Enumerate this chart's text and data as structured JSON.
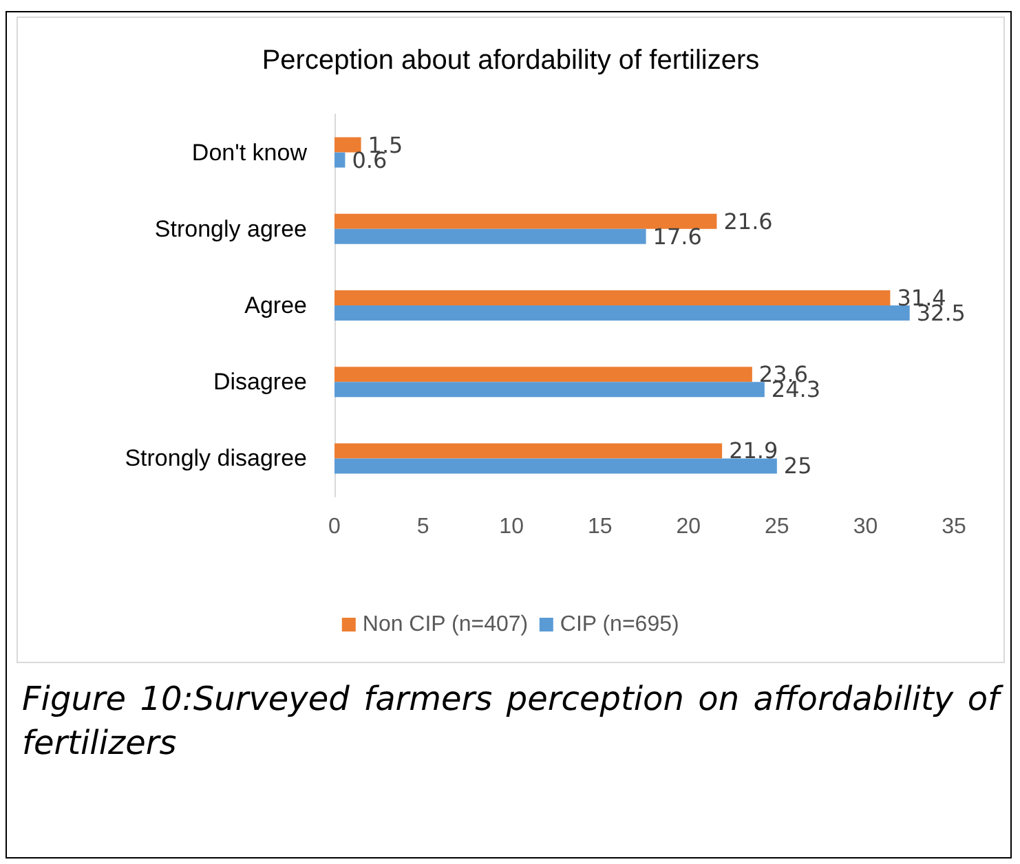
{
  "chart_data": {
    "type": "bar",
    "orientation": "horizontal",
    "title": "Perception about afordability of fertilizers",
    "categories": [
      "Don't know",
      "Strongly agree",
      "Agree",
      "Disagree",
      "Strongly disagree"
    ],
    "series": [
      {
        "name": "Non CIP (n=407)",
        "color": "#ed7d31",
        "values": [
          1.5,
          21.6,
          31.4,
          23.6,
          21.9
        ]
      },
      {
        "name": "CIP (n=695)",
        "color": "#5b9bd5",
        "values": [
          0.6,
          17.6,
          32.5,
          24.3,
          25
        ]
      }
    ],
    "xlim": [
      0,
      35
    ],
    "xticks": [
      0,
      5,
      10,
      15,
      20,
      25,
      30,
      35
    ],
    "grid": false,
    "legend": "bottom",
    "data_labels": true,
    "annotations": [
      "Figure 10:Surveyed farmers perception on affordability of fertilizers"
    ]
  }
}
